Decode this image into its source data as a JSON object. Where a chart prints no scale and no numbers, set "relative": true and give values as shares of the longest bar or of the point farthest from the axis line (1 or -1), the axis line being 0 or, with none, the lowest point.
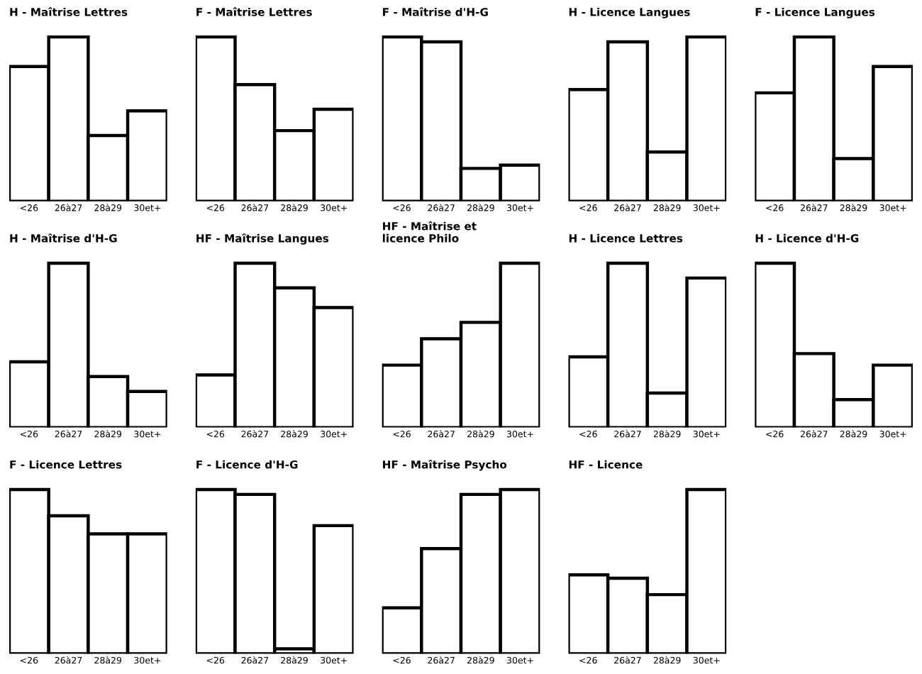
{
  "chart_data": [
    {
      "type": "bar",
      "relative": true,
      "title": "H - Maîtrise Lettres",
      "categories": [
        "<26",
        "26à27",
        "28à29",
        "30et+"
      ],
      "values": [
        0.82,
        1,
        0.4,
        0.55
      ],
      "color": "#000000"
    },
    {
      "type": "bar",
      "relative": true,
      "title": "F - Maîtrise Lettres",
      "categories": [
        "<26",
        "26à27",
        "28à29",
        "30et+"
      ],
      "values": [
        1,
        0.71,
        0.43,
        0.56
      ],
      "color": "#000000"
    },
    {
      "type": "bar",
      "relative": true,
      "title": "F - Maîtrise d'H-G",
      "categories": [
        "<26",
        "26à27",
        "28à29",
        "30et+"
      ],
      "values": [
        1,
        0.97,
        0.2,
        0.22
      ],
      "color": "#000000"
    },
    {
      "type": "bar",
      "relative": true,
      "title": "H - Licence Langues",
      "categories": [
        "<26",
        "26à27",
        "28à29",
        "30et+"
      ],
      "values": [
        0.68,
        0.97,
        0.3,
        1
      ],
      "color": "#000000"
    },
    {
      "type": "bar",
      "relative": true,
      "title": "F - Licence Langues",
      "categories": [
        "<26",
        "26à27",
        "28à29",
        "30et+"
      ],
      "values": [
        0.66,
        1,
        0.26,
        0.82
      ],
      "color": "#000000"
    },
    {
      "type": "bar",
      "relative": true,
      "title": "H - Maîtrise d'H-G",
      "categories": [
        "<26",
        "26à27",
        "28à29",
        "30et+"
      ],
      "values": [
        0.4,
        1,
        0.31,
        0.22
      ],
      "color": "#000000"
    },
    {
      "type": "bar",
      "relative": true,
      "title": "HF - Maîtrise Langues",
      "categories": [
        "<26",
        "26à27",
        "28à29",
        "30et+"
      ],
      "values": [
        0.32,
        1,
        0.85,
        0.73
      ],
      "color": "#000000"
    },
    {
      "type": "bar",
      "relative": true,
      "title": "HF - Maîtrise et\nlicence Philo",
      "categories": [
        "<26",
        "26à27",
        "28à29",
        "30et+"
      ],
      "values": [
        0.38,
        0.54,
        0.64,
        1
      ],
      "color": "#000000"
    },
    {
      "type": "bar",
      "relative": true,
      "title": "H - Licence Lettres",
      "categories": [
        "<26",
        "26à27",
        "28à29",
        "30et+"
      ],
      "values": [
        0.43,
        1,
        0.21,
        0.91
      ],
      "color": "#000000"
    },
    {
      "type": "bar",
      "relative": true,
      "title": "H - Licence d'H-G",
      "categories": [
        "<26",
        "26à27",
        "28à29",
        "30et+"
      ],
      "values": [
        1,
        0.45,
        0.17,
        0.38
      ],
      "color": "#000000"
    },
    {
      "type": "bar",
      "relative": true,
      "title": "F - Licence Lettres",
      "categories": [
        "<26",
        "26à27",
        "28à29",
        "30et+"
      ],
      "values": [
        1,
        0.84,
        0.73,
        0.73
      ],
      "color": "#000000"
    },
    {
      "type": "bar",
      "relative": true,
      "title": "F - Licence d'H-G",
      "categories": [
        "<26",
        "26à27",
        "28à29",
        "30et+"
      ],
      "values": [
        1,
        0.97,
        0.03,
        0.78
      ],
      "color": "#000000"
    },
    {
      "type": "bar",
      "relative": true,
      "title": "HF - Maîtrise Psycho",
      "categories": [
        "<26",
        "26à27",
        "28à29",
        "30et+"
      ],
      "values": [
        0.28,
        0.64,
        0.97,
        1
      ],
      "color": "#000000"
    },
    {
      "type": "bar",
      "relative": true,
      "title": "HF - Licence",
      "categories": [
        "<26",
        "26à27",
        "28à29",
        "30et+"
      ],
      "values": [
        0.48,
        0.46,
        0.36,
        1
      ],
      "color": "#000000"
    }
  ]
}
